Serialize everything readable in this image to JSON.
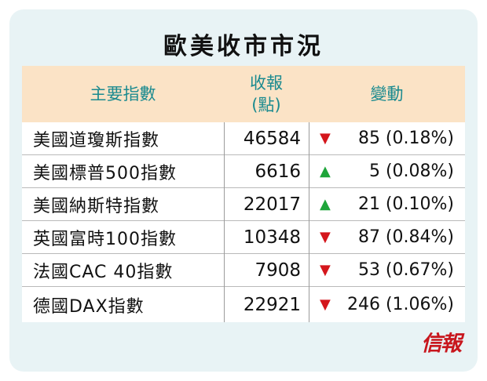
{
  "title": "歐美收市市況",
  "headers": {
    "index": "主要指數",
    "close_line1": "收報",
    "close_line2": "(點)",
    "change": "變動"
  },
  "rows": [
    {
      "name": "美國道瓊斯指數",
      "close": "46584",
      "direction": "down",
      "arrow": "▼",
      "change": " 85 (0.18%)"
    },
    {
      "name": "美國標普500指數",
      "close": "6616",
      "direction": "up",
      "arrow": "▲",
      "change": "  5 (0.08%)"
    },
    {
      "name": "美國納斯特指數",
      "close": "22017",
      "direction": "up",
      "arrow": "▲",
      "change": " 21 (0.10%)"
    },
    {
      "name": "英國富時100指數",
      "close": "10348",
      "direction": "down",
      "arrow": "▼",
      "change": " 87 (0.84%)"
    },
    {
      "name": "法國CAC 40指數",
      "close": "7908",
      "direction": "down",
      "arrow": "▼",
      "change": " 53 (0.67%)"
    },
    {
      "name": "德國DAX指數",
      "close": "22921",
      "direction": "down",
      "arrow": "▼",
      "change": "246 (1.06%)"
    }
  ],
  "logo": "信報",
  "colors": {
    "panel_bg": "#e8f3f5",
    "header_bg": "#fbe3c6",
    "header_text": "#1a8a8f",
    "down": "#d4161c",
    "up": "#1ea53a",
    "logo": "#c8161d"
  }
}
